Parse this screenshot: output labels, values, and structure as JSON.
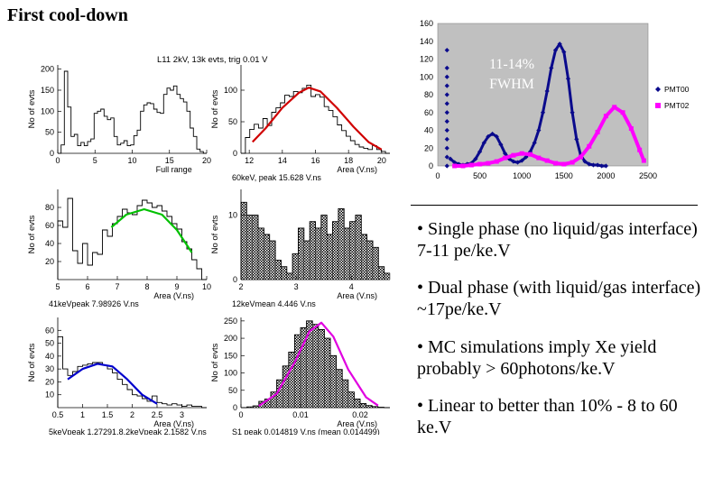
{
  "slide": {
    "title": "First cool-down",
    "bullets": [
      "• Single phase (no liquid/gas interface) 7-11 pe/ke.V",
      "• Dual phase (with liquid/gas interface) ~17pe/ke.V",
      "• MC simulations imply Xe yield probably > 60photons/ke.V",
      "• Linear to better than 10% - 8 to 60 ke.V"
    ]
  },
  "colors": {
    "pmt00": "#0a0a8c",
    "pmt02": "#ff00ff",
    "plot_bg": "#c0c0c0",
    "fit_red": "#d00000",
    "fit_green": "#00c000",
    "fit_blue": "#0000cc",
    "fit_magenta": "#e000e0"
  },
  "chart_data": [
    {
      "type": "scatter",
      "xlim": [
        0,
        2500
      ],
      "ylim": [
        0,
        160
      ],
      "xticks": [
        "0",
        "500",
        "1000",
        "1500",
        "2000",
        "2500"
      ],
      "yticks": [
        "0",
        "20",
        "40",
        "60",
        "80",
        "100",
        "120",
        "140",
        "160"
      ],
      "annotation": [
        "11-14%",
        "FWHM"
      ],
      "legend_position": "right",
      "series": [
        {
          "name": "PMT00",
          "x": [
            110,
            110,
            110,
            110,
            110,
            110,
            110,
            110,
            110,
            110,
            110,
            110,
            110,
            150,
            200,
            250,
            300,
            350,
            400,
            450,
            500,
            550,
            600,
            650,
            700,
            750,
            800,
            850,
            900,
            950,
            1000,
            1050,
            1100,
            1150,
            1200,
            1250,
            1300,
            1350,
            1400,
            1450,
            1500,
            1550,
            1600,
            1650,
            1700,
            1750,
            1800,
            1850,
            1900,
            1950,
            2000
          ],
          "y": [
            0,
            10,
            20,
            30,
            40,
            50,
            60,
            70,
            80,
            90,
            100,
            110,
            130,
            8,
            4,
            2,
            1,
            2,
            3,
            8,
            16,
            26,
            33,
            36,
            33,
            24,
            14,
            8,
            5,
            4,
            6,
            10,
            16,
            26,
            40,
            60,
            84,
            110,
            130,
            137,
            128,
            98,
            60,
            30,
            12,
            5,
            2,
            1,
            1,
            0,
            0
          ]
        },
        {
          "name": "PMT02",
          "x": [
            200,
            300,
            400,
            500,
            600,
            700,
            800,
            900,
            1000,
            1100,
            1200,
            1300,
            1400,
            1500,
            1600,
            1700,
            1800,
            1900,
            2000,
            2100,
            2200,
            2300,
            2400,
            2450
          ],
          "y": [
            0,
            0,
            1,
            2,
            3,
            5,
            9,
            12,
            14,
            13,
            9,
            6,
            3,
            2,
            4,
            10,
            22,
            38,
            56,
            66,
            60,
            42,
            18,
            6
          ]
        }
      ]
    },
    {
      "type": "bar",
      "header": "L11 2kV, 13k evts, trig 0.01 V",
      "ylabel": "No of evts",
      "xlabel": "Full range",
      "xlim": [
        0,
        20
      ],
      "ylim": [
        0,
        210
      ],
      "xticks": [
        "0",
        "5",
        "10",
        "15",
        "20"
      ],
      "yticks": [
        "0",
        "50",
        "100",
        "150",
        "200"
      ],
      "values": [
        0,
        20,
        195,
        110,
        40,
        45,
        18,
        26,
        18,
        28,
        34,
        95,
        100,
        105,
        88,
        80,
        84,
        40,
        20,
        24,
        30,
        18,
        20,
        42,
        55,
        100,
        115,
        120,
        118,
        105,
        97,
        95,
        140,
        155,
        150,
        160,
        140,
        130,
        122,
        100,
        60,
        40,
        10,
        4,
        0
      ]
    },
    {
      "type": "bar",
      "ylabel": "No of evts",
      "xlabel": "Area (V.ns)",
      "footer": "60keV, peak 15.628 V.ns",
      "xlim": [
        11.5,
        20.5
      ],
      "ylim": [
        0,
        140
      ],
      "xticks": [
        "12",
        "14",
        "16",
        "18",
        "20"
      ],
      "yticks": [
        "0",
        "50",
        "100"
      ],
      "values": [
        0,
        25,
        38,
        46,
        40,
        55,
        44,
        65,
        72,
        80,
        92,
        90,
        98,
        96,
        103,
        108,
        90,
        93,
        89,
        74,
        68,
        58,
        45,
        36,
        27,
        20,
        14,
        10,
        8,
        6,
        12,
        6,
        3,
        0
      ],
      "fit": [
        [
          12.2,
          18
        ],
        [
          13,
          40
        ],
        [
          14,
          72
        ],
        [
          15,
          96
        ],
        [
          15.6,
          104
        ],
        [
          16.3,
          98
        ],
        [
          17.3,
          72
        ],
        [
          18.3,
          42
        ],
        [
          19.2,
          18
        ],
        [
          20.0,
          6
        ]
      ]
    },
    {
      "type": "bar",
      "ylabel": "No of evts",
      "xlabel": "Area (V.ns)",
      "footer": "41keVpeak 7.98926 V.ns",
      "xlim": [
        5,
        10
      ],
      "ylim": [
        0,
        100
      ],
      "xticks": [
        "5",
        "6",
        "7",
        "8",
        "9",
        "10"
      ],
      "yticks": [
        "20",
        "40",
        "60",
        "80"
      ],
      "values": [
        65,
        58,
        90,
        32,
        18,
        40,
        16,
        30,
        28,
        55,
        48,
        62,
        70,
        78,
        74,
        72,
        82,
        88,
        85,
        80,
        82,
        76,
        70,
        62,
        56,
        42,
        34,
        22,
        12,
        0
      ],
      "fit": [
        [
          6.8,
          58
        ],
        [
          7.3,
          72
        ],
        [
          7.9,
          78
        ],
        [
          8.5,
          72
        ],
        [
          9.0,
          55
        ],
        [
          9.5,
          30
        ]
      ]
    },
    {
      "type": "bar",
      "ylabel": "No of evts",
      "xlabel": "Area (V.ns)",
      "footer": "12keVmean 4.446 V.ns",
      "xlim": [
        2,
        4.7
      ],
      "ylim": [
        0,
        14
      ],
      "xticks": [
        "2",
        "3",
        "4"
      ],
      "yticks": [
        "0",
        "10"
      ],
      "values": [
        12,
        10,
        10,
        8,
        7,
        6,
        3,
        2,
        1,
        4,
        8,
        6,
        9,
        8,
        10,
        7,
        9,
        11,
        8,
        9,
        10,
        7,
        6,
        5,
        2,
        1
      ]
    },
    {
      "type": "bar",
      "ylabel": "No of evts",
      "xlabel": "Area (V.ns)",
      "footer": "5keVpeak 1.27291,8.2keVpeak 2.1582 V.ns",
      "xlim": [
        0.5,
        3.5
      ],
      "ylim": [
        0,
        70
      ],
      "xticks": [
        "0.5",
        "1",
        "1.5",
        "2",
        "2.5",
        "3"
      ],
      "yticks": [
        "10",
        "20",
        "30",
        "40",
        "50",
        "60"
      ],
      "values": [
        55,
        30,
        25,
        28,
        32,
        33,
        34,
        35,
        35,
        33,
        30,
        27,
        22,
        18,
        14,
        10,
        9,
        7,
        5,
        9,
        4,
        3,
        2,
        3,
        2,
        1,
        2,
        1,
        1,
        0
      ],
      "fit": [
        [
          0.7,
          22
        ],
        [
          1.0,
          30
        ],
        [
          1.3,
          34
        ],
        [
          1.6,
          32
        ],
        [
          1.9,
          22
        ],
        [
          2.2,
          10
        ],
        [
          2.5,
          3
        ]
      ]
    },
    {
      "type": "bar",
      "ylabel": "No of evts",
      "xlabel": "Area (V.ns)",
      "footer": "S1 peak 0.014819 V.ns (mean 0.014499)",
      "xlim": [
        0,
        0.025
      ],
      "ylim": [
        0,
        260
      ],
      "xticks": [
        "0",
        "0.01",
        "0.02"
      ],
      "yticks": [
        "0",
        "50",
        "100",
        "150",
        "200",
        "250"
      ],
      "values": [
        0,
        2,
        5,
        18,
        25,
        45,
        80,
        120,
        160,
        210,
        230,
        250,
        240,
        225,
        200,
        150,
        110,
        80,
        45,
        25,
        12,
        6,
        3,
        1,
        0
      ],
      "fit": [
        [
          0.003,
          5
        ],
        [
          0.006,
          40
        ],
        [
          0.009,
          130
        ],
        [
          0.0115,
          220
        ],
        [
          0.0135,
          245
        ],
        [
          0.0155,
          205
        ],
        [
          0.018,
          110
        ],
        [
          0.021,
          30
        ],
        [
          0.023,
          6
        ]
      ]
    }
  ]
}
